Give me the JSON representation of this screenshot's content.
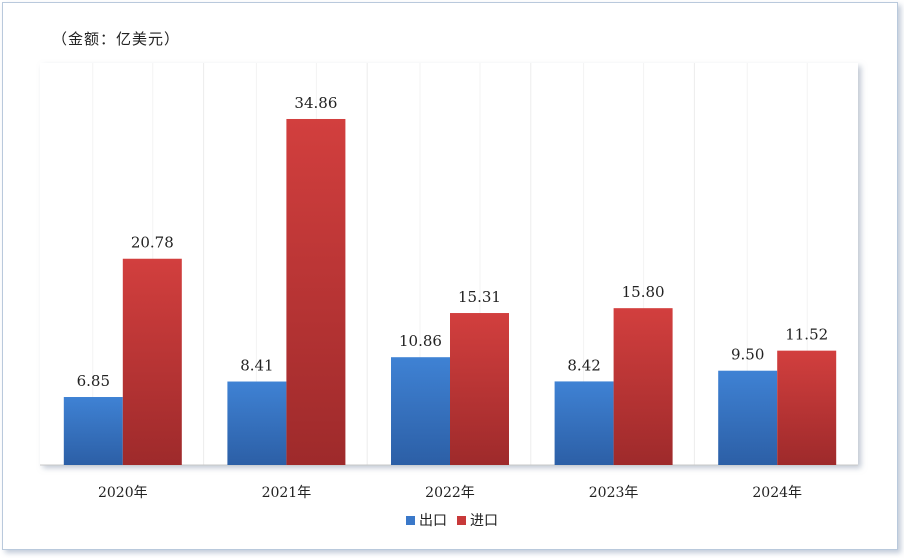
{
  "chart_data": {
    "type": "bar",
    "unit_note": "（金额：亿美元）",
    "categories": [
      "2020年",
      "2021年",
      "2022年",
      "2023年",
      "2024年"
    ],
    "series": [
      {
        "name": "出口",
        "values": [
          6.85,
          8.41,
          10.86,
          8.42,
          9.5
        ],
        "labels": [
          "6.85",
          "8.41",
          "10.86",
          "8.42",
          "9.50"
        ],
        "color": "#3a78c9"
      },
      {
        "name": "进口",
        "values": [
          20.78,
          34.86,
          15.31,
          15.8,
          11.52
        ],
        "labels": [
          "20.78",
          "34.86",
          "15.31",
          "15.80",
          "11.52"
        ],
        "color": "#c8393a"
      }
    ],
    "ylim": [
      0,
      40.5
    ],
    "grid": false,
    "legend_position": "bottom"
  }
}
